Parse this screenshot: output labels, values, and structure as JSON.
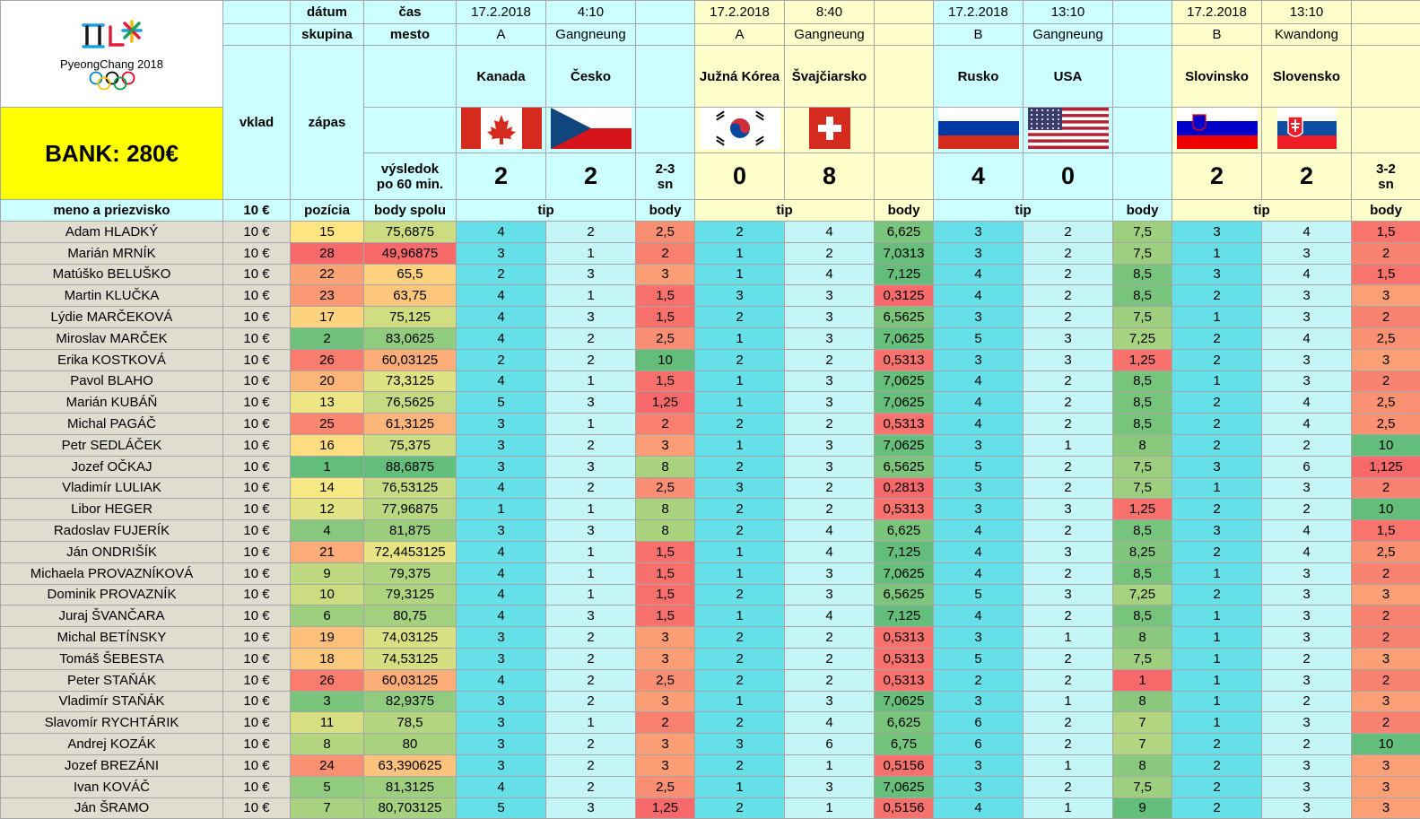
{
  "bank": "BANK: 280€",
  "logo_text": "PyeongChang 2018",
  "labels": {
    "datum": "dátum",
    "cas": "čas",
    "skupina": "skupina",
    "mesto": "mesto",
    "vklad": "vklad",
    "zapas": "zápas",
    "vysledok1": "výsledok",
    "vysledok2": "po 60 min.",
    "meno": "meno a priezvisko",
    "stake": "10 €",
    "pozicia": "pozícia",
    "body_spolu": "body spolu",
    "tip": "tip",
    "body": "body"
  },
  "matches": [
    {
      "date": "17.2.2018",
      "time": "4:10",
      "group": "A",
      "city": "Gangneung",
      "home": "Kanada",
      "away": "Česko",
      "home_flag": "canada",
      "away_flag": "czech",
      "home_score": "2",
      "away_score": "2",
      "extra1": "2-3",
      "extra2": "sn"
    },
    {
      "date": "17.2.2018",
      "time": "8:40",
      "group": "A",
      "city": "Gangneung",
      "home": "Južná Kórea",
      "away": "Švajčiarsko",
      "home_flag": "korea",
      "away_flag": "switzerland",
      "home_score": "0",
      "away_score": "8",
      "extra1": "",
      "extra2": ""
    },
    {
      "date": "17.2.2018",
      "time": "13:10",
      "group": "B",
      "city": "Gangneung",
      "home": "Rusko",
      "away": "USA",
      "home_flag": "russia",
      "away_flag": "usa",
      "home_score": "4",
      "away_score": "0",
      "extra1": "",
      "extra2": ""
    },
    {
      "date": "17.2.2018",
      "time": "13:10",
      "group": "B",
      "city": "Kwandong",
      "home": "Slovinsko",
      "away": "Slovensko",
      "home_flag": "slovenia",
      "away_flag": "slovakia",
      "home_score": "2",
      "away_score": "2",
      "extra1": "3-2",
      "extra2": "sn"
    }
  ],
  "rows": [
    {
      "name": "Adam HLADKÝ",
      "stake": "10 €",
      "pos": "15",
      "total": "75,6875",
      "m": [
        [
          "4",
          "2",
          "2,5"
        ],
        [
          "2",
          "4",
          "6,625"
        ],
        [
          "3",
          "2",
          "7,5"
        ],
        [
          "3",
          "4",
          "1,5"
        ]
      ]
    },
    {
      "name": "Marián MRNÍK",
      "stake": "10 €",
      "pos": "28",
      "total": "49,96875",
      "m": [
        [
          "3",
          "1",
          "2"
        ],
        [
          "1",
          "2",
          "7,0313"
        ],
        [
          "3",
          "2",
          "7,5"
        ],
        [
          "1",
          "3",
          "2"
        ]
      ]
    },
    {
      "name": "Matúško BELUŠKO",
      "stake": "10 €",
      "pos": "22",
      "total": "65,5",
      "m": [
        [
          "2",
          "3",
          "3"
        ],
        [
          "1",
          "4",
          "7,125"
        ],
        [
          "4",
          "2",
          "8,5"
        ],
        [
          "3",
          "4",
          "1,5"
        ]
      ]
    },
    {
      "name": "Martin KLUČKA",
      "stake": "10 €",
      "pos": "23",
      "total": "63,75",
      "m": [
        [
          "4",
          "1",
          "1,5"
        ],
        [
          "3",
          "3",
          "0,3125"
        ],
        [
          "4",
          "2",
          "8,5"
        ],
        [
          "2",
          "3",
          "3"
        ]
      ]
    },
    {
      "name": "Lýdie MARČEKOVÁ",
      "stake": "10 €",
      "pos": "17",
      "total": "75,125",
      "m": [
        [
          "4",
          "3",
          "1,5"
        ],
        [
          "2",
          "3",
          "6,5625"
        ],
        [
          "3",
          "2",
          "7,5"
        ],
        [
          "1",
          "3",
          "2"
        ]
      ]
    },
    {
      "name": "Miroslav MARČEK",
      "stake": "10 €",
      "pos": "2",
      "total": "83,0625",
      "m": [
        [
          "4",
          "2",
          "2,5"
        ],
        [
          "1",
          "3",
          "7,0625"
        ],
        [
          "5",
          "3",
          "7,25"
        ],
        [
          "2",
          "4",
          "2,5"
        ]
      ]
    },
    {
      "name": "Erika KOSTKOVÁ",
      "stake": "10 €",
      "pos": "26",
      "total": "60,03125",
      "m": [
        [
          "2",
          "2",
          "10"
        ],
        [
          "2",
          "2",
          "0,5313"
        ],
        [
          "3",
          "3",
          "1,25"
        ],
        [
          "2",
          "3",
          "3"
        ]
      ]
    },
    {
      "name": "Pavol BLAHO",
      "stake": "10 €",
      "pos": "20",
      "total": "73,3125",
      "m": [
        [
          "4",
          "1",
          "1,5"
        ],
        [
          "1",
          "3",
          "7,0625"
        ],
        [
          "4",
          "2",
          "8,5"
        ],
        [
          "1",
          "3",
          "2"
        ]
      ]
    },
    {
      "name": "Marián KUBÁŇ",
      "stake": "10 €",
      "pos": "13",
      "total": "76,5625",
      "m": [
        [
          "5",
          "3",
          "1,25"
        ],
        [
          "1",
          "3",
          "7,0625"
        ],
        [
          "4",
          "2",
          "8,5"
        ],
        [
          "2",
          "4",
          "2,5"
        ]
      ]
    },
    {
      "name": "Michal PAGÁČ",
      "stake": "10 €",
      "pos": "25",
      "total": "61,3125",
      "m": [
        [
          "3",
          "1",
          "2"
        ],
        [
          "2",
          "2",
          "0,5313"
        ],
        [
          "4",
          "2",
          "8,5"
        ],
        [
          "2",
          "4",
          "2,5"
        ]
      ]
    },
    {
      "name": "Petr SEDLÁČEK",
      "stake": "10 €",
      "pos": "16",
      "total": "75,375",
      "m": [
        [
          "3",
          "2",
          "3"
        ],
        [
          "1",
          "3",
          "7,0625"
        ],
        [
          "3",
          "1",
          "8"
        ],
        [
          "2",
          "2",
          "10"
        ]
      ]
    },
    {
      "name": "Jozef OČKAJ",
      "stake": "10 €",
      "pos": "1",
      "total": "88,6875",
      "m": [
        [
          "3",
          "3",
          "8"
        ],
        [
          "2",
          "3",
          "6,5625"
        ],
        [
          "5",
          "2",
          "7,5"
        ],
        [
          "3",
          "6",
          "1,125"
        ]
      ]
    },
    {
      "name": "Vladimír LULIAK",
      "stake": "10 €",
      "pos": "14",
      "total": "76,53125",
      "m": [
        [
          "4",
          "2",
          "2,5"
        ],
        [
          "3",
          "2",
          "0,2813"
        ],
        [
          "3",
          "2",
          "7,5"
        ],
        [
          "1",
          "3",
          "2"
        ]
      ]
    },
    {
      "name": "Libor HEGER",
      "stake": "10 €",
      "pos": "12",
      "total": "77,96875",
      "m": [
        [
          "1",
          "1",
          "8"
        ],
        [
          "2",
          "2",
          "0,5313"
        ],
        [
          "3",
          "3",
          "1,25"
        ],
        [
          "2",
          "2",
          "10"
        ]
      ]
    },
    {
      "name": "Radoslav FUJERÍK",
      "stake": "10 €",
      "pos": "4",
      "total": "81,875",
      "m": [
        [
          "3",
          "3",
          "8"
        ],
        [
          "2",
          "4",
          "6,625"
        ],
        [
          "4",
          "2",
          "8,5"
        ],
        [
          "3",
          "4",
          "1,5"
        ]
      ]
    },
    {
      "name": "Ján ONDRIŠÍK",
      "stake": "10 €",
      "pos": "21",
      "total": "72,4453125",
      "m": [
        [
          "4",
          "1",
          "1,5"
        ],
        [
          "1",
          "4",
          "7,125"
        ],
        [
          "4",
          "3",
          "8,25"
        ],
        [
          "2",
          "4",
          "2,5"
        ]
      ]
    },
    {
      "name": "Michaela PROVAZNÍKOVÁ",
      "stake": "10 €",
      "pos": "9",
      "total": "79,375",
      "m": [
        [
          "4",
          "1",
          "1,5"
        ],
        [
          "1",
          "3",
          "7,0625"
        ],
        [
          "4",
          "2",
          "8,5"
        ],
        [
          "1",
          "3",
          "2"
        ]
      ]
    },
    {
      "name": "Dominik PROVAZNÍK",
      "stake": "10 €",
      "pos": "10",
      "total": "79,3125",
      "m": [
        [
          "4",
          "1",
          "1,5"
        ],
        [
          "2",
          "3",
          "6,5625"
        ],
        [
          "5",
          "3",
          "7,25"
        ],
        [
          "2",
          "3",
          "3"
        ]
      ]
    },
    {
      "name": "Juraj ŠVANČARA",
      "stake": "10 €",
      "pos": "6",
      "total": "80,75",
      "m": [
        [
          "4",
          "3",
          "1,5"
        ],
        [
          "1",
          "4",
          "7,125"
        ],
        [
          "4",
          "2",
          "8,5"
        ],
        [
          "1",
          "3",
          "2"
        ]
      ]
    },
    {
      "name": "Michal BETÍNSKY",
      "stake": "10 €",
      "pos": "19",
      "total": "74,03125",
      "m": [
        [
          "3",
          "2",
          "3"
        ],
        [
          "2",
          "2",
          "0,5313"
        ],
        [
          "3",
          "1",
          "8"
        ],
        [
          "1",
          "3",
          "2"
        ]
      ]
    },
    {
      "name": "Tomáš ŠEBESTA",
      "stake": "10 €",
      "pos": "18",
      "total": "74,53125",
      "m": [
        [
          "3",
          "2",
          "3"
        ],
        [
          "2",
          "2",
          "0,5313"
        ],
        [
          "5",
          "2",
          "7,5"
        ],
        [
          "1",
          "2",
          "3"
        ]
      ]
    },
    {
      "name": "Peter STAŇÁK",
      "stake": "10 €",
      "pos": "26",
      "total": "60,03125",
      "m": [
        [
          "4",
          "2",
          "2,5"
        ],
        [
          "2",
          "2",
          "0,5313"
        ],
        [
          "2",
          "2",
          "1"
        ],
        [
          "1",
          "3",
          "2"
        ]
      ]
    },
    {
      "name": "Vladimír STAŇÁK",
      "stake": "10 €",
      "pos": "3",
      "total": "82,9375",
      "m": [
        [
          "3",
          "2",
          "3"
        ],
        [
          "1",
          "3",
          "7,0625"
        ],
        [
          "3",
          "1",
          "8"
        ],
        [
          "1",
          "2",
          "3"
        ]
      ]
    },
    {
      "name": "Slavomír RYCHTÁRIK",
      "stake": "10 €",
      "pos": "11",
      "total": "78,5",
      "m": [
        [
          "3",
          "1",
          "2"
        ],
        [
          "2",
          "4",
          "6,625"
        ],
        [
          "6",
          "2",
          "7"
        ],
        [
          "1",
          "3",
          "2"
        ]
      ]
    },
    {
      "name": "Andrej KOZÁK",
      "stake": "10 €",
      "pos": "8",
      "total": "80",
      "m": [
        [
          "3",
          "2",
          "3"
        ],
        [
          "3",
          "6",
          "6,75"
        ],
        [
          "6",
          "2",
          "7"
        ],
        [
          "2",
          "2",
          "10"
        ]
      ]
    },
    {
      "name": "Jozef BREZÁNI",
      "stake": "10 €",
      "pos": "24",
      "total": "63,390625",
      "m": [
        [
          "3",
          "2",
          "3"
        ],
        [
          "2",
          "1",
          "0,5156"
        ],
        [
          "3",
          "1",
          "8"
        ],
        [
          "2",
          "3",
          "3"
        ]
      ]
    },
    {
      "name": "Ivan KOVÁČ",
      "stake": "10 €",
      "pos": "5",
      "total": "81,3125",
      "m": [
        [
          "4",
          "2",
          "2,5"
        ],
        [
          "1",
          "3",
          "7,0625"
        ],
        [
          "3",
          "2",
          "7,5"
        ],
        [
          "2",
          "3",
          "3"
        ]
      ]
    },
    {
      "name": "Ján ŠRAMO",
      "stake": "10 €",
      "pos": "7",
      "total": "80,703125",
      "m": [
        [
          "5",
          "3",
          "1,25"
        ],
        [
          "2",
          "1",
          "0,5156"
        ],
        [
          "4",
          "1",
          "9"
        ],
        [
          "2",
          "3",
          "3"
        ]
      ]
    }
  ]
}
